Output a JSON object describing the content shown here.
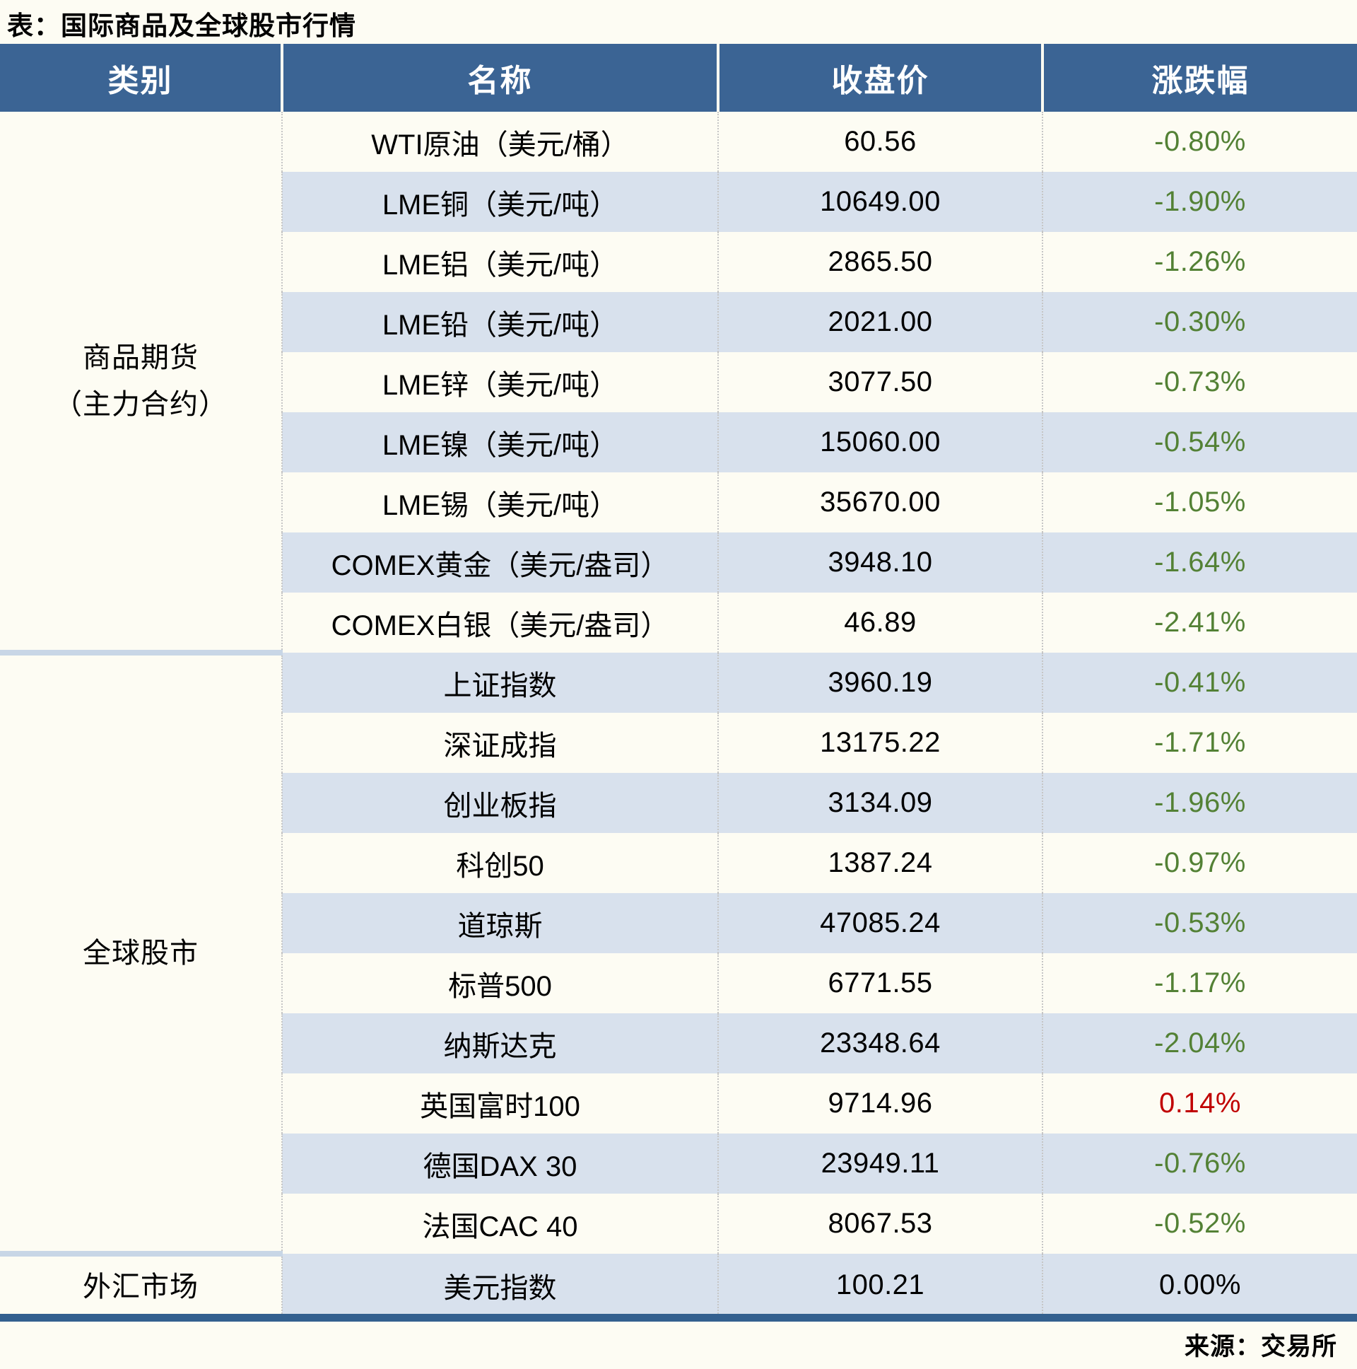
{
  "page": {
    "title": "表：国际商品及全球股市行情",
    "source": "来源：交易所"
  },
  "colors": {
    "header_bg": "#3B6494",
    "row_stripe": "#D8E1ED",
    "section_divider": "#C8D6E6",
    "bottom_bar": "#33608F",
    "negative_change": "#538135",
    "positive_change": "#C00000",
    "zero_change": "#000000"
  },
  "table": {
    "columns": [
      "类别",
      "名称",
      "收盘价",
      "涨跌幅"
    ],
    "groups": [
      {
        "category_lines": [
          "商品期货",
          "（主力合约）"
        ],
        "rows": [
          {
            "name": "WTI原油（美元/桶）",
            "close": "60.56",
            "change": "-0.80%",
            "change_color": "#538135"
          },
          {
            "name": "LME铜（美元/吨）",
            "close": "10649.00",
            "change": "-1.90%",
            "change_color": "#538135"
          },
          {
            "name": "LME铝（美元/吨）",
            "close": "2865.50",
            "change": "-1.26%",
            "change_color": "#538135"
          },
          {
            "name": "LME铅（美元/吨）",
            "close": "2021.00",
            "change": "-0.30%",
            "change_color": "#538135"
          },
          {
            "name": "LME锌（美元/吨）",
            "close": "3077.50",
            "change": "-0.73%",
            "change_color": "#538135"
          },
          {
            "name": "LME镍（美元/吨）",
            "close": "15060.00",
            "change": "-0.54%",
            "change_color": "#538135"
          },
          {
            "name": "LME锡（美元/吨）",
            "close": "35670.00",
            "change": "-1.05%",
            "change_color": "#538135"
          },
          {
            "name": "COMEX黄金（美元/盎司）",
            "close": "3948.10",
            "change": "-1.64%",
            "change_color": "#538135"
          },
          {
            "name": "COMEX白银（美元/盎司）",
            "close": "46.89",
            "change": "-2.41%",
            "change_color": "#538135"
          }
        ]
      },
      {
        "category_lines": [
          "全球股市"
        ],
        "rows": [
          {
            "name": "上证指数",
            "close": "3960.19",
            "change": "-0.41%",
            "change_color": "#538135"
          },
          {
            "name": "深证成指",
            "close": "13175.22",
            "change": "-1.71%",
            "change_color": "#538135"
          },
          {
            "name": "创业板指",
            "close": "3134.09",
            "change": "-1.96%",
            "change_color": "#538135"
          },
          {
            "name": "科创50",
            "close": "1387.24",
            "change": "-0.97%",
            "change_color": "#538135"
          },
          {
            "name": "道琼斯",
            "close": "47085.24",
            "change": "-0.53%",
            "change_color": "#538135"
          },
          {
            "name": "标普500",
            "close": "6771.55",
            "change": "-1.17%",
            "change_color": "#538135"
          },
          {
            "name": "纳斯达克",
            "close": "23348.64",
            "change": "-2.04%",
            "change_color": "#538135"
          },
          {
            "name": "英国富时100",
            "close": "9714.96",
            "change": "0.14%",
            "change_color": "#C00000"
          },
          {
            "name": "德国DAX 30",
            "close": "23949.11",
            "change": "-0.76%",
            "change_color": "#538135"
          },
          {
            "name": "法国CAC 40",
            "close": "8067.53",
            "change": "-0.52%",
            "change_color": "#538135"
          }
        ]
      },
      {
        "category_lines": [
          "外汇市场"
        ],
        "rows": [
          {
            "name": "美元指数",
            "close": "100.21",
            "change": "0.00%",
            "change_color": "#000000"
          }
        ]
      }
    ]
  }
}
